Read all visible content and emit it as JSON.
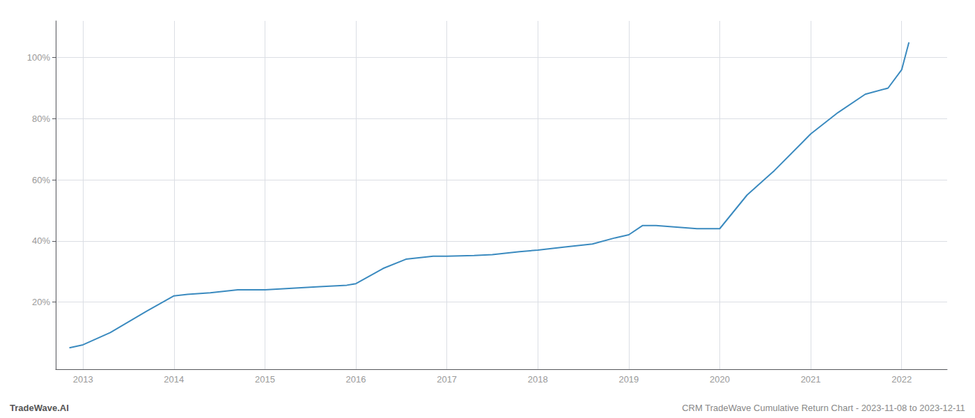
{
  "chart_data": {
    "type": "line",
    "x": [
      2012.85,
      2013.0,
      2013.3,
      2013.7,
      2014.0,
      2014.15,
      2014.4,
      2014.7,
      2015.0,
      2015.3,
      2015.6,
      2015.9,
      2016.0,
      2016.3,
      2016.55,
      2016.85,
      2017.0,
      2017.3,
      2017.5,
      2017.8,
      2018.0,
      2018.3,
      2018.6,
      2018.85,
      2019.0,
      2019.15,
      2019.3,
      2019.75,
      2020.0,
      2020.3,
      2020.6,
      2020.9,
      2021.0,
      2021.3,
      2021.6,
      2021.85,
      2022.0,
      2022.08
    ],
    "values": [
      5,
      6,
      10,
      17,
      22,
      22.5,
      23,
      24,
      24,
      24.5,
      25,
      25.5,
      26,
      31,
      34,
      35,
      35,
      35.2,
      35.5,
      36.5,
      37,
      38,
      39,
      41,
      42,
      45,
      45,
      44,
      44,
      55,
      63,
      72,
      75,
      82,
      88,
      90,
      96,
      105
    ],
    "color": "#3a8abf",
    "xlim": [
      2012.7,
      2022.5
    ],
    "xticks": [
      2013,
      2014,
      2015,
      2016,
      2017,
      2018,
      2019,
      2020,
      2021,
      2022
    ],
    "ylim": [
      -2,
      112
    ],
    "yticks": [
      {
        "value": 20,
        "label": "20%"
      },
      {
        "value": 40,
        "label": "40%"
      },
      {
        "value": 60,
        "label": "60%"
      },
      {
        "value": 80,
        "label": "80%"
      },
      {
        "value": 100,
        "label": "100%"
      }
    ],
    "grid": true,
    "annotations": [
      "TradeWave.AI",
      "CRM TradeWave Cumulative Return Chart - 2023-11-08 to 2023-12-11"
    ]
  }
}
